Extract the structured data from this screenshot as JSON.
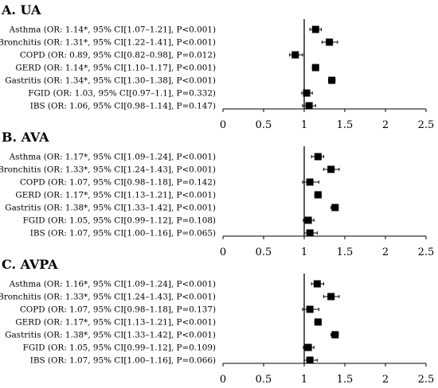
{
  "chart_data": [
    {
      "type": "forest",
      "title": "A. UA",
      "xlim": [
        0,
        2.5
      ],
      "xticks": [
        "0",
        "0.5",
        "1",
        "1.5",
        "2",
        "2.5"
      ],
      "reference_line": 1,
      "rows": [
        {
          "label": "Asthma (OR: 1.14*, 95% CI[1.07–1.21], P<0.001)",
          "or": 1.14,
          "lo": 1.07,
          "hi": 1.21
        },
        {
          "label": "Bronchitis (OR: 1.31*, 95% CI[1.22–1.41], P<0.001)",
          "or": 1.31,
          "lo": 1.22,
          "hi": 1.41
        },
        {
          "label": "COPD (OR: 0.89, 95% CI[0.82–0.98], P=0.012)",
          "or": 0.89,
          "lo": 0.82,
          "hi": 0.98
        },
        {
          "label": "GERD (OR: 1.14*, 95% CI[1.10–1.17], P<0.001)",
          "or": 1.14,
          "lo": 1.1,
          "hi": 1.17
        },
        {
          "label": "Gastritis (OR: 1.34*, 95% CI[1.30–1.38], P<0.001)",
          "or": 1.34,
          "lo": 1.3,
          "hi": 1.38
        },
        {
          "label": "FGID (OR: 1.03, 95% CI[0.97–1.1], P=0.332)",
          "or": 1.03,
          "lo": 0.97,
          "hi": 1.1
        },
        {
          "label": "IBS (OR: 1.06, 95% CI[0.98–1.14], P=0.147)",
          "or": 1.06,
          "lo": 0.98,
          "hi": 1.14
        }
      ]
    },
    {
      "type": "forest",
      "title": "B. AVA",
      "xlim": [
        0,
        2.5
      ],
      "xticks": [
        "0",
        "0.5",
        "1",
        "1.5",
        "2",
        "2.5"
      ],
      "reference_line": 1,
      "rows": [
        {
          "label": "Asthma (OR: 1.17*, 95% CI[1.09–1.24], P<0.001)",
          "or": 1.17,
          "lo": 1.09,
          "hi": 1.24
        },
        {
          "label": "Bronchitis (OR: 1.33*, 95% CI[1.24–1.43], P<0.001)",
          "or": 1.33,
          "lo": 1.24,
          "hi": 1.43
        },
        {
          "label": "COPD (OR: 1.07, 95% CI[0.98–1.18], P=0.142)",
          "or": 1.07,
          "lo": 0.98,
          "hi": 1.18
        },
        {
          "label": "GERD (OR: 1.17*, 95% CI[1.13–1.21], P<0.001)",
          "or": 1.17,
          "lo": 1.13,
          "hi": 1.21
        },
        {
          "label": "Gastritis (OR: 1.38*, 95% CI[1.33–1.42], P<0.001)",
          "or": 1.38,
          "lo": 1.33,
          "hi": 1.42
        },
        {
          "label": "FGID (OR: 1.05, 95% CI[0.99–1.12], P=0.108)",
          "or": 1.05,
          "lo": 0.99,
          "hi": 1.12
        },
        {
          "label": "IBS (OR: 1.07, 95% CI[1.00–1.16], P=0.065)",
          "or": 1.07,
          "lo": 1.0,
          "hi": 1.16
        }
      ]
    },
    {
      "type": "forest",
      "title": "C. AVPA",
      "xlim": [
        0,
        2.5
      ],
      "xticks": [
        "0",
        "0.5",
        "1",
        "1.5",
        "2",
        "2.5"
      ],
      "reference_line": 1,
      "rows": [
        {
          "label": "Asthma (OR: 1.16*, 95% CI[1.09–1.24], P<0.001)",
          "or": 1.16,
          "lo": 1.09,
          "hi": 1.24
        },
        {
          "label": "Bronchitis (OR: 1.33*, 95% CI[1.24–1.43], P<0.001)",
          "or": 1.33,
          "lo": 1.24,
          "hi": 1.43
        },
        {
          "label": "COPD (OR: 1.07, 95% CI[0.98–1.18], P=0.137)",
          "or": 1.07,
          "lo": 0.98,
          "hi": 1.18
        },
        {
          "label": "GERD (OR: 1.17*, 95% CI[1.13–1.21], P<0.001)",
          "or": 1.17,
          "lo": 1.13,
          "hi": 1.21
        },
        {
          "label": "Gastritis (OR: 1.38*, 95% CI[1.33–1.42], P<0.001)",
          "or": 1.38,
          "lo": 1.33,
          "hi": 1.42
        },
        {
          "label": "FGID (OR: 1.05, 95% CI[0.99–1.12], P=0.109)",
          "or": 1.05,
          "lo": 0.99,
          "hi": 1.12
        },
        {
          "label": "IBS (OR: 1.07, 95% CI[1.00–1.16], P=0.066)",
          "or": 1.07,
          "lo": 1.0,
          "hi": 1.16
        }
      ]
    }
  ]
}
